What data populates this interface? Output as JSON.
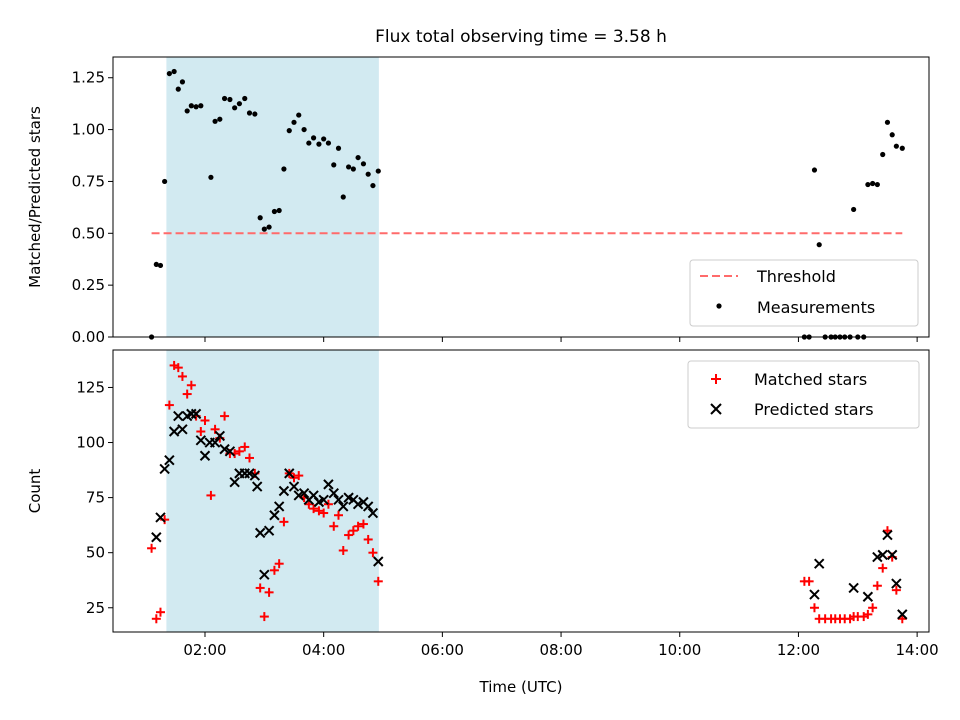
{
  "figure_title": "Flux total observing time = 3.58 h",
  "colors": {
    "observing_window": "#add8e6",
    "threshold": "#ff6b6b",
    "matched": "#ff0000",
    "predicted": "#000000",
    "measurements": "#000000"
  },
  "chart_data": [
    {
      "type": "scatter",
      "title": "Flux total observing time = 3.58 h",
      "xlabel": "",
      "ylabel": "Matched/Predicted stars",
      "xlim": [
        0.45,
        14.2
      ],
      "ylim": [
        0,
        1.35
      ],
      "yticks": [
        0.0,
        0.25,
        0.5,
        0.75,
        1.0,
        1.25
      ],
      "ytick_labels": [
        "0.00",
        "0.25",
        "0.50",
        "0.75",
        "1.00",
        "1.25"
      ],
      "grid": false,
      "legend_position": "lower-right",
      "observing_window": [
        1.35,
        4.93
      ],
      "threshold": {
        "name": "Threshold",
        "value": 0.5,
        "x_range": [
          1.1,
          13.75
        ]
      },
      "series": [
        {
          "name": "Measurements",
          "points": [
            [
              1.1,
              0.0
            ],
            [
              1.18,
              0.35
            ],
            [
              1.25,
              0.345
            ],
            [
              1.32,
              0.75
            ],
            [
              1.4,
              1.27
            ],
            [
              1.48,
              1.28
            ],
            [
              1.55,
              1.195
            ],
            [
              1.62,
              1.23
            ],
            [
              1.7,
              1.09
            ],
            [
              1.77,
              1.115
            ],
            [
              1.85,
              1.11
            ],
            [
              1.93,
              1.115
            ],
            [
              2.1,
              0.77
            ],
            [
              2.17,
              1.04
            ],
            [
              2.25,
              1.05
            ],
            [
              2.33,
              1.15
            ],
            [
              2.42,
              1.145
            ],
            [
              2.5,
              1.105
            ],
            [
              2.58,
              1.125
            ],
            [
              2.67,
              1.15
            ],
            [
              2.75,
              1.08
            ],
            [
              2.84,
              1.075
            ],
            [
              2.93,
              0.575
            ],
            [
              3.0,
              0.52
            ],
            [
              3.08,
              0.53
            ],
            [
              3.17,
              0.605
            ],
            [
              3.25,
              0.61
            ],
            [
              3.33,
              0.81
            ],
            [
              3.42,
              0.995
            ],
            [
              3.5,
              1.035
            ],
            [
              3.58,
              1.07
            ],
            [
              3.67,
              1.0
            ],
            [
              3.75,
              0.935
            ],
            [
              3.83,
              0.96
            ],
            [
              3.92,
              0.93
            ],
            [
              4.0,
              0.955
            ],
            [
              4.08,
              0.935
            ],
            [
              4.17,
              0.83
            ],
            [
              4.25,
              0.91
            ],
            [
              4.33,
              0.675
            ],
            [
              4.42,
              0.82
            ],
            [
              4.5,
              0.81
            ],
            [
              4.58,
              0.865
            ],
            [
              4.67,
              0.835
            ],
            [
              4.75,
              0.785
            ],
            [
              4.83,
              0.73
            ],
            [
              4.92,
              0.8
            ],
            [
              12.1,
              0.0
            ],
            [
              12.18,
              0.0
            ],
            [
              12.27,
              0.805
            ],
            [
              12.35,
              0.445
            ],
            [
              12.45,
              0.0
            ],
            [
              12.55,
              0.0
            ],
            [
              12.62,
              0.0
            ],
            [
              12.7,
              0.0
            ],
            [
              12.78,
              0.0
            ],
            [
              12.87,
              0.0
            ],
            [
              12.93,
              0.615
            ],
            [
              13.0,
              0.0
            ],
            [
              13.1,
              0.0
            ],
            [
              13.17,
              0.735
            ],
            [
              13.25,
              0.74
            ],
            [
              13.33,
              0.735
            ],
            [
              13.42,
              0.88
            ],
            [
              13.5,
              1.035
            ],
            [
              13.58,
              0.975
            ],
            [
              13.65,
              0.92
            ],
            [
              13.75,
              0.91
            ]
          ]
        }
      ]
    },
    {
      "type": "scatter",
      "title": "",
      "xlabel": "Time (UTC)",
      "ylabel": "Count",
      "xlim": [
        0.45,
        14.2
      ],
      "ylim": [
        14,
        142
      ],
      "xticks": [
        2,
        4,
        6,
        8,
        10,
        12,
        14
      ],
      "xtick_labels": [
        "02:00",
        "04:00",
        "06:00",
        "08:00",
        "10:00",
        "12:00",
        "14:00"
      ],
      "yticks": [
        25,
        50,
        75,
        100,
        125
      ],
      "ytick_labels": [
        "25",
        "50",
        "75",
        "100",
        "125"
      ],
      "grid": false,
      "legend_position": "upper-right",
      "observing_window": [
        1.35,
        4.93
      ],
      "series": [
        {
          "name": "Matched stars",
          "marker": "plus",
          "points": [
            [
              1.1,
              52
            ],
            [
              1.18,
              20
            ],
            [
              1.25,
              23
            ],
            [
              1.32,
              65
            ],
            [
              1.4,
              117
            ],
            [
              1.48,
              135
            ],
            [
              1.55,
              134
            ],
            [
              1.62,
              130
            ],
            [
              1.7,
              122
            ],
            [
              1.77,
              126
            ],
            [
              1.85,
              112
            ],
            [
              1.93,
              105
            ],
            [
              2.0,
              110
            ],
            [
              2.1,
              76
            ],
            [
              2.17,
              106
            ],
            [
              2.25,
              102
            ],
            [
              2.33,
              112
            ],
            [
              2.42,
              95
            ],
            [
              2.5,
              95
            ],
            [
              2.58,
              96
            ],
            [
              2.67,
              98
            ],
            [
              2.75,
              93
            ],
            [
              2.84,
              86
            ],
            [
              2.93,
              34
            ],
            [
              3.0,
              21
            ],
            [
              3.08,
              32
            ],
            [
              3.17,
              42
            ],
            [
              3.25,
              45
            ],
            [
              3.33,
              64
            ],
            [
              3.42,
              86
            ],
            [
              3.5,
              84
            ],
            [
              3.58,
              85
            ],
            [
              3.67,
              75
            ],
            [
              3.75,
              72
            ],
            [
              3.83,
              70
            ],
            [
              3.92,
              69
            ],
            [
              4.0,
              68
            ],
            [
              4.08,
              72
            ],
            [
              4.17,
              62
            ],
            [
              4.25,
              67
            ],
            [
              4.33,
              51
            ],
            [
              4.42,
              58
            ],
            [
              4.5,
              60
            ],
            [
              4.58,
              62
            ],
            [
              4.67,
              63
            ],
            [
              4.75,
              56
            ],
            [
              4.83,
              50
            ],
            [
              4.92,
              37
            ],
            [
              12.1,
              37
            ],
            [
              12.18,
              37
            ],
            [
              12.27,
              25
            ],
            [
              12.35,
              20
            ],
            [
              12.45,
              20
            ],
            [
              12.55,
              20
            ],
            [
              12.62,
              20
            ],
            [
              12.7,
              20
            ],
            [
              12.78,
              20
            ],
            [
              12.87,
              20
            ],
            [
              12.93,
              21
            ],
            [
              13.0,
              21
            ],
            [
              13.1,
              21
            ],
            [
              13.17,
              22
            ],
            [
              13.25,
              25
            ],
            [
              13.33,
              35
            ],
            [
              13.42,
              43
            ],
            [
              13.5,
              60
            ],
            [
              13.58,
              48
            ],
            [
              13.65,
              33
            ],
            [
              13.75,
              20
            ]
          ]
        },
        {
          "name": "Predicted stars",
          "marker": "x",
          "points": [
            [
              1.18,
              57
            ],
            [
              1.25,
              66
            ],
            [
              1.32,
              88
            ],
            [
              1.4,
              92
            ],
            [
              1.48,
              105
            ],
            [
              1.55,
              112
            ],
            [
              1.62,
              106
            ],
            [
              1.7,
              112
            ],
            [
              1.77,
              113
            ],
            [
              1.85,
              113
            ],
            [
              1.93,
              101
            ],
            [
              2.0,
              94
            ],
            [
              2.08,
              100
            ],
            [
              2.17,
              100
            ],
            [
              2.25,
              103
            ],
            [
              2.33,
              97
            ],
            [
              2.42,
              96
            ],
            [
              2.5,
              82
            ],
            [
              2.58,
              86
            ],
            [
              2.67,
              86
            ],
            [
              2.75,
              86
            ],
            [
              2.84,
              85
            ],
            [
              2.88,
              80
            ],
            [
              2.93,
              59
            ],
            [
              3.0,
              40
            ],
            [
              3.08,
              60
            ],
            [
              3.17,
              67
            ],
            [
              3.25,
              71
            ],
            [
              3.33,
              78
            ],
            [
              3.42,
              86
            ],
            [
              3.5,
              80
            ],
            [
              3.58,
              76
            ],
            [
              3.67,
              77
            ],
            [
              3.75,
              74
            ],
            [
              3.83,
              76
            ],
            [
              3.92,
              73
            ],
            [
              4.0,
              74
            ],
            [
              4.08,
              81
            ],
            [
              4.17,
              77
            ],
            [
              4.25,
              74
            ],
            [
              4.33,
              71
            ],
            [
              4.42,
              75
            ],
            [
              4.5,
              74
            ],
            [
              4.58,
              72
            ],
            [
              4.67,
              73
            ],
            [
              4.75,
              71
            ],
            [
              4.83,
              68
            ],
            [
              4.92,
              46
            ],
            [
              12.27,
              31
            ],
            [
              12.35,
              45
            ],
            [
              12.93,
              34
            ],
            [
              13.17,
              30
            ],
            [
              13.33,
              48
            ],
            [
              13.42,
              49
            ],
            [
              13.5,
              58
            ],
            [
              13.58,
              49
            ],
            [
              13.65,
              36
            ],
            [
              13.75,
              22
            ]
          ]
        }
      ]
    }
  ]
}
